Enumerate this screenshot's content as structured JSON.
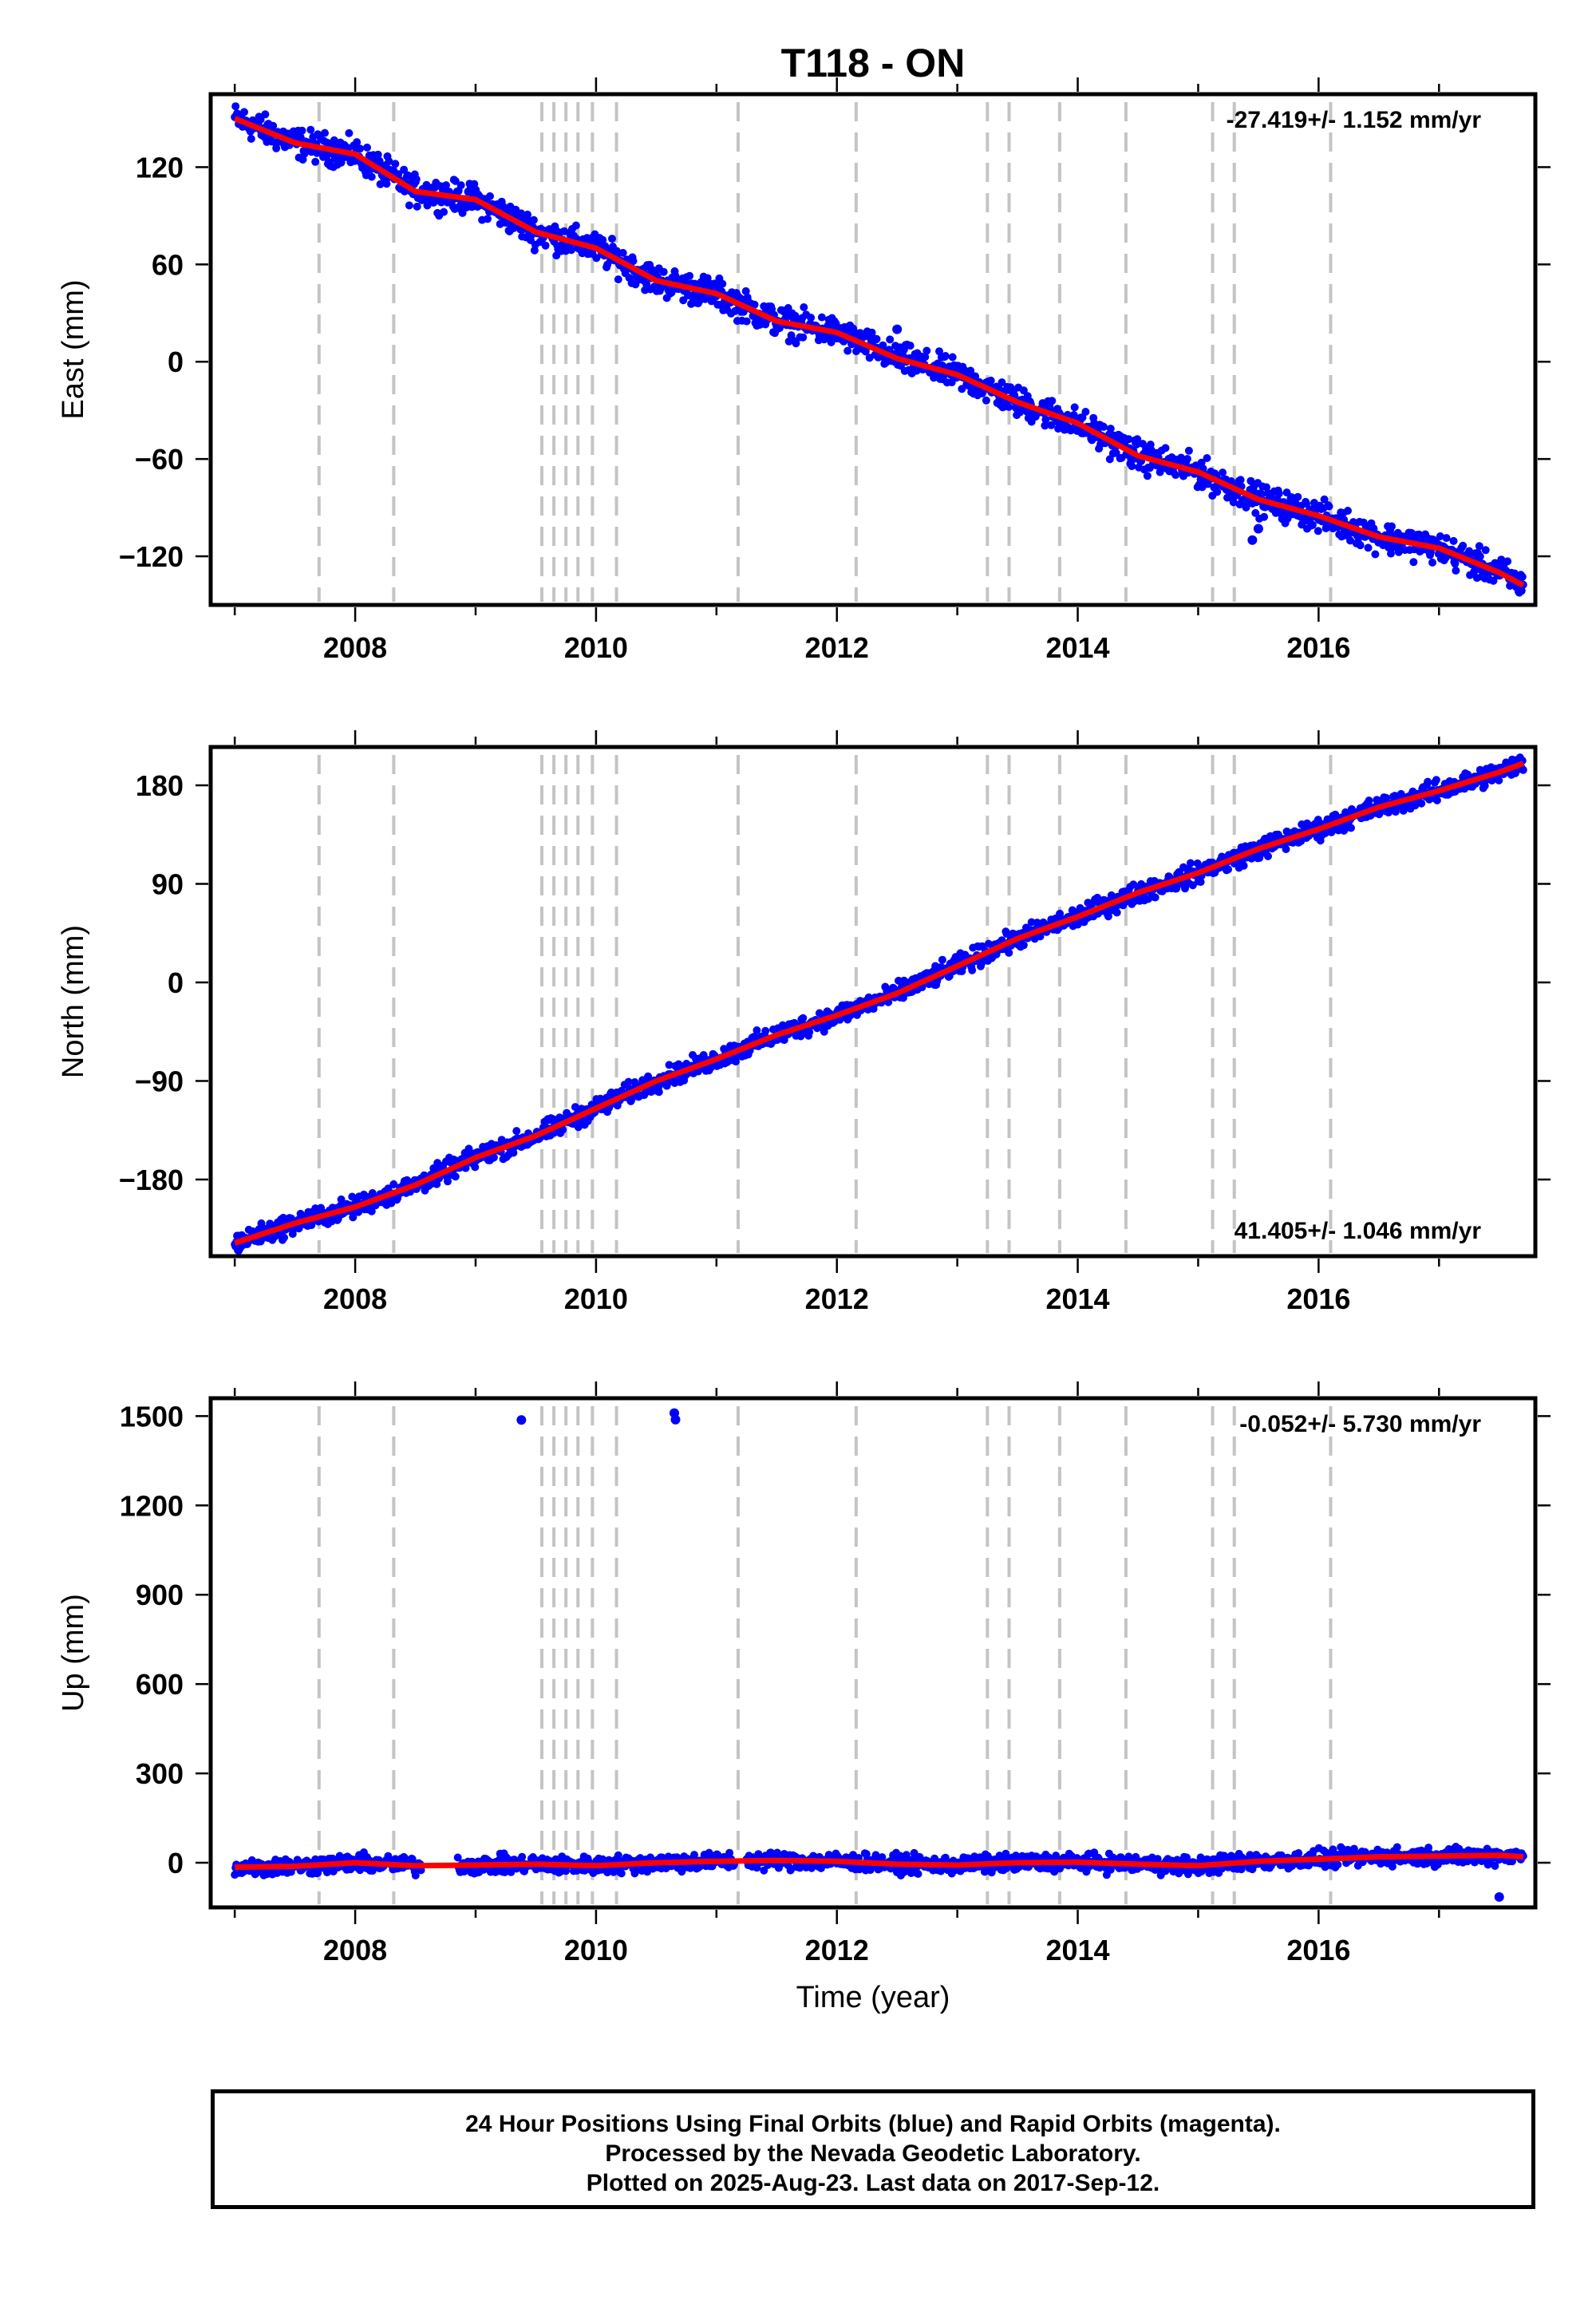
{
  "title": "T118 - ON",
  "x_label": "Time (year)",
  "footer": {
    "line1": "24 Hour Positions Using Final Orbits (blue) and Rapid Orbits (magenta).",
    "line2": "Processed by the Nevada Geodetic Laboratory.",
    "line3": "Plotted on 2025-Aug-23. Last data on 2017-Sep-12."
  },
  "colors": {
    "final_orbits": "#0000ff",
    "model_fit": "#ff0000",
    "breaks": "#c4c4c4"
  },
  "chart_data": [
    {
      "type": "scatter",
      "component": "East",
      "ylabel": "East (mm)",
      "rate_label": "-27.419+/- 1.152 mm/yr",
      "rate_position": "top-right",
      "xlim": [
        2006.8,
        2017.8
      ],
      "ylim": [
        -150,
        165
      ],
      "xticks": [
        2008,
        2010,
        2012,
        2014,
        2016
      ],
      "yticks": [
        -120,
        -60,
        0,
        60,
        120
      ],
      "x": [
        2007.0,
        2007.5,
        2008.0,
        2008.5,
        2009.0,
        2009.5,
        2010.0,
        2010.5,
        2011.0,
        2011.5,
        2012.0,
        2012.5,
        2013.0,
        2013.5,
        2014.0,
        2014.5,
        2015.0,
        2015.5,
        2016.0,
        2016.5,
        2017.0,
        2017.5,
        2017.7
      ],
      "y": [
        150,
        135,
        128,
        105,
        100,
        80,
        70,
        50,
        42,
        25,
        18,
        2,
        -8,
        -25,
        -38,
        -58,
        -68,
        -85,
        -95,
        -108,
        -115,
        -130,
        -138
      ],
      "outliers": [
        {
          "x": 2012.5,
          "y": 20
        },
        {
          "x": 2015.5,
          "y": -103
        },
        {
          "x": 2015.45,
          "y": -110
        }
      ],
      "breaks": [
        2007.7,
        2008.32,
        2009.55,
        2009.65,
        2009.75,
        2009.85,
        2009.97,
        2010.17,
        2011.18,
        2012.16,
        2013.25,
        2013.43,
        2013.85,
        2014.4,
        2015.12,
        2015.3,
        2016.1
      ],
      "grid": false
    },
    {
      "type": "scatter",
      "component": "North",
      "ylabel": "North (mm)",
      "rate_label": "41.405+/- 1.046 mm/yr",
      "rate_position": "bottom-right",
      "xlim": [
        2006.8,
        2017.8
      ],
      "ylim": [
        -250,
        215
      ],
      "xticks": [
        2008,
        2010,
        2012,
        2014,
        2016
      ],
      "yticks": [
        -180,
        -90,
        0,
        90,
        180
      ],
      "x": [
        2007.0,
        2007.5,
        2008.0,
        2008.5,
        2009.0,
        2009.5,
        2010.0,
        2010.5,
        2011.0,
        2011.5,
        2012.0,
        2012.5,
        2013.0,
        2013.5,
        2014.0,
        2014.5,
        2015.0,
        2015.5,
        2016.0,
        2016.5,
        2017.0,
        2017.5,
        2017.7
      ],
      "y": [
        -238,
        -220,
        -205,
        -185,
        -160,
        -140,
        -115,
        -90,
        -70,
        -48,
        -30,
        -10,
        15,
        40,
        60,
        82,
        100,
        122,
        140,
        160,
        175,
        192,
        200
      ],
      "outliers": [],
      "breaks": [
        2007.7,
        2008.32,
        2009.55,
        2009.65,
        2009.75,
        2009.85,
        2009.97,
        2010.17,
        2011.18,
        2012.16,
        2013.25,
        2013.43,
        2013.85,
        2014.4,
        2015.12,
        2015.3,
        2016.1
      ],
      "grid": false
    },
    {
      "type": "scatter",
      "component": "Up",
      "ylabel": "Up (mm)",
      "rate_label": "-0.052+/- 5.730 mm/yr",
      "rate_position": "top-right",
      "xlim": [
        2006.8,
        2017.8
      ],
      "ylim": [
        -150,
        1560
      ],
      "xticks": [
        2008,
        2010,
        2012,
        2014,
        2016
      ],
      "yticks": [
        0,
        300,
        600,
        900,
        1200,
        1500
      ],
      "x": [
        2007.0,
        2007.5,
        2008.0,
        2008.5,
        2009.0,
        2009.5,
        2010.0,
        2010.5,
        2011.0,
        2011.5,
        2012.0,
        2012.5,
        2013.0,
        2013.5,
        2014.0,
        2014.5,
        2015.0,
        2015.5,
        2016.0,
        2016.5,
        2017.0,
        2017.5,
        2017.7
      ],
      "y": [
        -15,
        -12,
        0,
        -10,
        -8,
        -5,
        -10,
        0,
        5,
        8,
        5,
        -5,
        -8,
        0,
        2,
        -5,
        -10,
        5,
        12,
        20,
        22,
        25,
        20
      ],
      "outliers": [
        {
          "x": 2009.38,
          "y": 1487
        },
        {
          "x": 2010.65,
          "y": 1510
        },
        {
          "x": 2010.66,
          "y": 1488
        },
        {
          "x": 2017.5,
          "y": -115
        }
      ],
      "gaps": [
        [
          2008.55,
          2008.85
        ],
        [
          2011.15,
          2011.25
        ]
      ],
      "breaks": [
        2007.7,
        2008.32,
        2009.55,
        2009.65,
        2009.75,
        2009.85,
        2009.97,
        2010.17,
        2011.18,
        2012.16,
        2013.25,
        2013.43,
        2013.85,
        2014.4,
        2015.12,
        2015.3,
        2016.1
      ],
      "grid": false
    }
  ]
}
